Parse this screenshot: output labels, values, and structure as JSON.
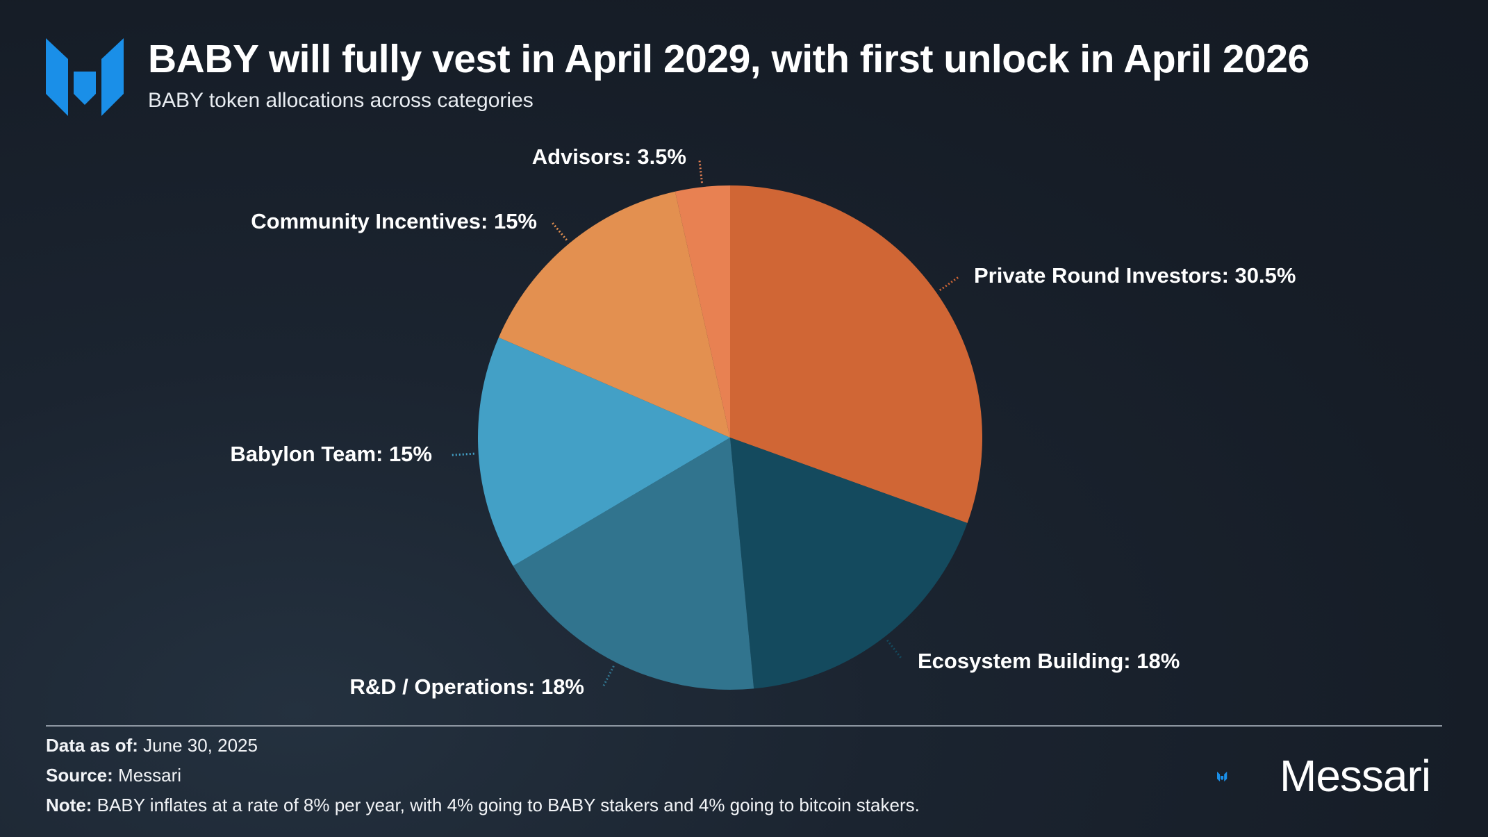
{
  "header": {
    "title": "BABY will fully vest in April 2029, with first unlock in April 2026",
    "subtitle": "BABY token allocations across categories"
  },
  "chart_data": {
    "type": "pie",
    "start_angle_deg": 0,
    "direction": "clockwise",
    "slices": [
      {
        "label": "Private Round Investors",
        "value": 30.5,
        "display": "Private Round Investors: 30.5%",
        "color": "#d06635"
      },
      {
        "label": "Ecosystem Building",
        "value": 18,
        "display": "Ecosystem Building: 18%",
        "color": "#144a5e"
      },
      {
        "label": "R&D / Operations",
        "value": 18,
        "display": "R&D / Operations: 18%",
        "color": "#31748e"
      },
      {
        "label": "Babylon Team",
        "value": 15,
        "display": "Babylon Team: 15%",
        "color": "#43a0c6"
      },
      {
        "label": "Community Incentives",
        "value": 15,
        "display": "Community Incentives: 15%",
        "color": "#e39050"
      },
      {
        "label": "Advisors",
        "value": 3.5,
        "display": "Advisors: 3.5%",
        "color": "#e88152"
      }
    ]
  },
  "footer": {
    "data_as_of_label": "Data as of:",
    "data_as_of_value": "June 30, 2025",
    "source_label": "Source:",
    "source_value": "Messari",
    "note_label": "Note:",
    "note_value": "BABY inflates at a rate of 8% per year, with 4% going to BABY stakers and 4% going to bitcoin stakers."
  },
  "brand": {
    "name": "Messari",
    "logo_icon": "messari-logo-icon",
    "logo_color": "#1a8fe8"
  }
}
